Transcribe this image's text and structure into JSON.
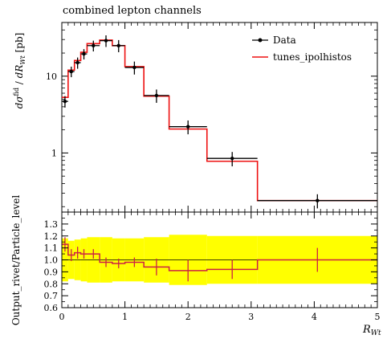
{
  "chart_data": [
    {
      "type": "line",
      "title": "combined lepton channels",
      "ylabel": "dσfid / dR_Wt [pb]",
      "yscale": "log",
      "xlim": [
        0,
        5
      ],
      "ylim": [
        0.17,
        50
      ],
      "y_ticks": [
        {
          "value": 1,
          "label": "1"
        },
        {
          "value": 10,
          "label": "10"
        }
      ],
      "legend_position": "top-right",
      "legend": [
        "Data",
        "tunes_ipolhistos"
      ],
      "bin_edges": [
        0.0,
        0.1,
        0.2,
        0.3,
        0.4,
        0.6,
        0.8,
        1.0,
        1.3,
        1.7,
        2.3,
        3.1,
        5.0
      ],
      "series": [
        {
          "name": "Data",
          "color": "#000000",
          "style": "points-with-errorbars",
          "x": [
            0.05,
            0.15,
            0.25,
            0.35,
            0.5,
            0.7,
            0.9,
            1.15,
            1.5,
            2.0,
            2.7,
            4.05
          ],
          "values": [
            4.7,
            11.5,
            15.0,
            19.5,
            25.0,
            29.0,
            25.0,
            13.0,
            5.6,
            2.2,
            0.85,
            0.24
          ],
          "y_err": [
            0.8,
            1.8,
            2.5,
            3.0,
            4.0,
            5.0,
            4.5,
            2.5,
            1.1,
            0.45,
            0.18,
            0.05
          ]
        },
        {
          "name": "tunes_ipolhistos",
          "color": "#ee1111",
          "style": "step",
          "values": [
            5.3,
            12.0,
            16.0,
            20.5,
            26.5,
            29.5,
            25.0,
            13.3,
            5.5,
            2.05,
            0.78,
            0.24
          ]
        }
      ]
    },
    {
      "type": "line",
      "ylabel": "Output_rivet/Particle_level",
      "xlabel": "R_Wt",
      "xlim": [
        0,
        5
      ],
      "ylim": [
        0.6,
        1.4
      ],
      "x_ticks": [
        "0",
        "1",
        "2",
        "3",
        "4",
        "5"
      ],
      "y_ticks": [
        "0.6",
        "0.7",
        "0.8",
        "0.9",
        "1.0",
        "1.1",
        "1.2",
        "1.3"
      ],
      "reference_line": 1.0,
      "band_color": "#ffff00",
      "band": [
        {
          "x0": 0.0,
          "x1": 0.1,
          "lo": 0.82,
          "hi": 1.18
        },
        {
          "x0": 0.1,
          "x1": 0.2,
          "lo": 0.84,
          "hi": 1.16
        },
        {
          "x0": 0.2,
          "x1": 0.3,
          "lo": 0.83,
          "hi": 1.17
        },
        {
          "x0": 0.3,
          "x1": 0.4,
          "lo": 0.82,
          "hi": 1.18
        },
        {
          "x0": 0.4,
          "x1": 0.6,
          "lo": 0.81,
          "hi": 1.19
        },
        {
          "x0": 0.6,
          "x1": 0.8,
          "lo": 0.81,
          "hi": 1.19
        },
        {
          "x0": 0.8,
          "x1": 1.0,
          "lo": 0.82,
          "hi": 1.18
        },
        {
          "x0": 1.0,
          "x1": 1.3,
          "lo": 0.82,
          "hi": 1.18
        },
        {
          "x0": 1.3,
          "x1": 1.7,
          "lo": 0.81,
          "hi": 1.19
        },
        {
          "x0": 1.7,
          "x1": 2.3,
          "lo": 0.79,
          "hi": 1.21
        },
        {
          "x0": 2.3,
          "x1": 3.1,
          "lo": 0.8,
          "hi": 1.2
        },
        {
          "x0": 3.1,
          "x1": 5.0,
          "lo": 0.8,
          "hi": 1.2
        }
      ],
      "ratio_step": [
        1.13,
        1.04,
        1.06,
        1.05,
        1.05,
        0.98,
        0.97,
        0.98,
        0.94,
        0.91,
        0.92,
        1.0
      ],
      "ratio_points": {
        "x": [
          0.05,
          0.15,
          0.25,
          0.35,
          0.5,
          0.7,
          0.9,
          1.15,
          1.5,
          2.0,
          2.7,
          4.05
        ],
        "y": [
          1.13,
          1.04,
          1.06,
          1.05,
          1.05,
          0.98,
          0.97,
          0.98,
          0.94,
          0.91,
          0.92,
          1.0
        ],
        "err": [
          0.06,
          0.05,
          0.05,
          0.04,
          0.04,
          0.04,
          0.04,
          0.04,
          0.07,
          0.09,
          0.08,
          0.1
        ]
      }
    }
  ]
}
